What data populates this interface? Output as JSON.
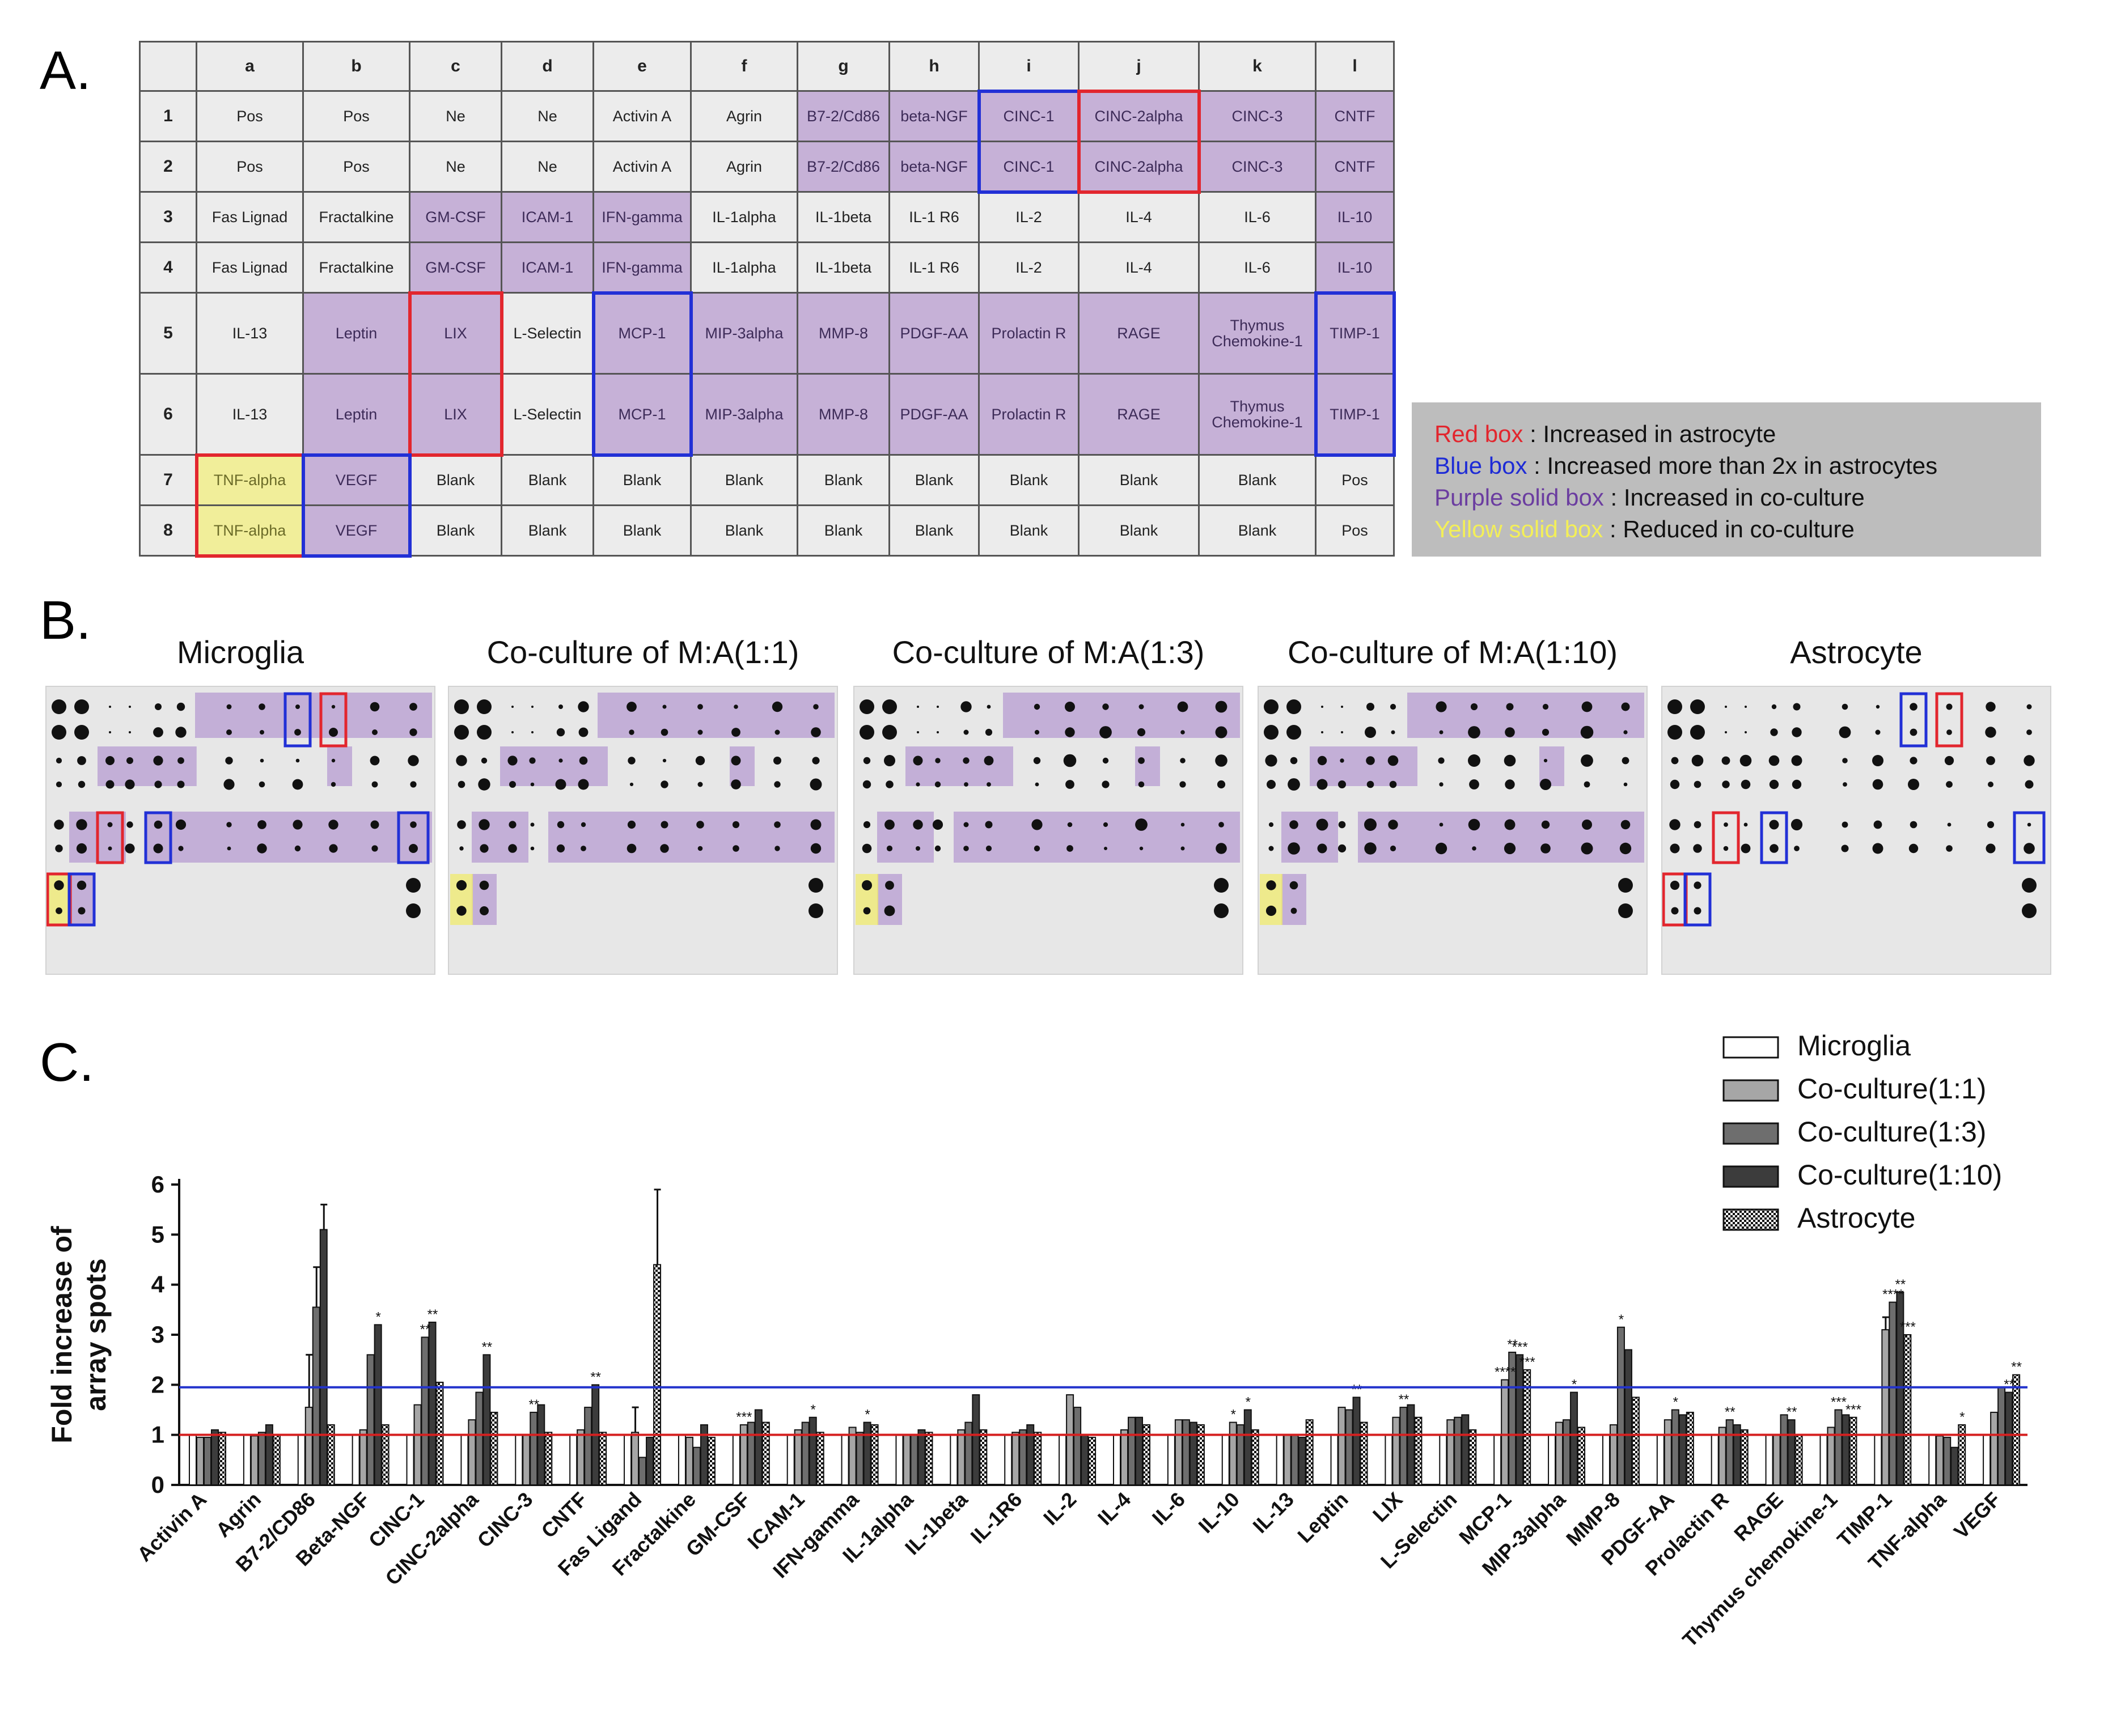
{
  "figure": {
    "panel_labels": {
      "a": "A.",
      "b": "B.",
      "c": "C."
    }
  },
  "panel_a": {
    "column_headers": [
      "",
      "a",
      "b",
      "c",
      "d",
      "e",
      "f",
      "g",
      "h",
      "i",
      "j",
      "k",
      "l"
    ],
    "rows": [
      {
        "id": "1",
        "cells": [
          "Pos",
          "Pos",
          "Ne",
          "Ne",
          "Activin A",
          "Agrin",
          "B7-2/Cd86",
          "beta-NGF",
          "CINC-1",
          "CINC-2alpha",
          "CINC-3",
          "CNTF"
        ]
      },
      {
        "id": "2",
        "cells": [
          "Pos",
          "Pos",
          "Ne",
          "Ne",
          "Activin A",
          "Agrin",
          "B7-2/Cd86",
          "beta-NGF",
          "CINC-1",
          "CINC-2alpha",
          "CINC-3",
          "CNTF"
        ]
      },
      {
        "id": "3",
        "cells": [
          "Fas Lignad",
          "Fractalkine",
          "GM-CSF",
          "ICAM-1",
          "IFN-gamma",
          "IL-1alpha",
          "IL-1beta",
          "IL-1 R6",
          "IL-2",
          "IL-4",
          "IL-6",
          "IL-10"
        ]
      },
      {
        "id": "4",
        "cells": [
          "Fas Lignad",
          "Fractalkine",
          "GM-CSF",
          "ICAM-1",
          "IFN-gamma",
          "IL-1alpha",
          "IL-1beta",
          "IL-1 R6",
          "IL-2",
          "IL-4",
          "IL-6",
          "IL-10"
        ]
      },
      {
        "id": "5",
        "cells": [
          "IL-13",
          "Leptin",
          "LIX",
          "L-Selectin",
          "MCP-1",
          "MIP-3alpha",
          "MMP-8",
          "PDGF-AA",
          "Prolactin R",
          "RAGE",
          "Thymus Chemokine-1",
          "TIMP-1"
        ]
      },
      {
        "id": "6",
        "cells": [
          "IL-13",
          "Leptin",
          "LIX",
          "L-Selectin",
          "MCP-1",
          "MIP-3alpha",
          "MMP-8",
          "PDGF-AA",
          "Prolactin R",
          "RAGE",
          "Thymus Chemokine-1",
          "TIMP-1"
        ]
      },
      {
        "id": "7",
        "cells": [
          "TNF-alpha",
          "VEGF",
          "Blank",
          "Blank",
          "Blank",
          "Blank",
          "Blank",
          "Blank",
          "Blank",
          "Blank",
          "Blank",
          "Pos"
        ]
      },
      {
        "id": "8",
        "cells": [
          "TNF-alpha",
          "VEGF",
          "Blank",
          "Blank",
          "Blank",
          "Blank",
          "Blank",
          "Blank",
          "Blank",
          "Blank",
          "Blank",
          "Pos"
        ]
      }
    ],
    "legend": {
      "red_key": "Red box",
      "red_text": " : Increased in astrocyte",
      "blue_key": "Blue box",
      "blue_text": " : Increased more than 2x in astrocytes",
      "purple_key": "Purple solid box",
      "purple_text": " : Increased in co-culture",
      "yellow_key": "Yellow solid box",
      "yellow_text": " : Reduced in co-culture"
    },
    "colors": {
      "red": "#e2262e",
      "blue": "#2230d6",
      "purple": "#c6b1d7",
      "yellow": "#f1ee9a"
    }
  },
  "panel_b": {
    "blots": [
      {
        "title": "Microglia"
      },
      {
        "title": "Co-culture of M:A(1:1)"
      },
      {
        "title": "Co-culture of M:A(1:3)"
      },
      {
        "title": "Co-culture of M:A(1:10)"
      },
      {
        "title": "Astrocyte"
      }
    ]
  },
  "chart_data": {
    "type": "bar",
    "title": "",
    "xlabel": "",
    "ylabel": "Fold increase of array spots",
    "ylim": [
      0,
      6
    ],
    "yticks": [
      "0",
      "1",
      "2",
      "3",
      "4",
      "5",
      "6"
    ],
    "reference_lines": [
      {
        "y": 1,
        "color": "#d62020"
      },
      {
        "y": 1.95,
        "color": "#2233cc"
      }
    ],
    "categories": [
      "Activin A",
      "Agrin",
      "B7-2/CD86",
      "Beta-NGF",
      "CINC-1",
      "CINC-2alpha",
      "CINC-3",
      "CNTF",
      "Fas Ligand",
      "Fractalkine",
      "GM-CSF",
      "ICAM-1",
      "IFN-gamma",
      "IL-1alpha",
      "IL-1beta",
      "IL-1R6",
      "IL-2",
      "IL-4",
      "IL-6",
      "IL-10",
      "IL-13",
      "Leptin",
      "LIX",
      "L-Selectin",
      "MCP-1",
      "MIP-3alpha",
      "MMP-8",
      "PDGF-AA",
      "Prolactin R",
      "RAGE",
      "Thymus chemokine-1",
      "TIMP-1",
      "TNF-alpha",
      "VEGF"
    ],
    "series": [
      {
        "name": "Microglia",
        "fill": "#ffffff",
        "values": [
          1,
          1,
          1,
          1,
          1,
          1,
          1,
          1,
          1,
          1,
          1,
          1,
          1,
          1,
          1,
          1,
          1,
          1,
          1,
          1,
          1,
          1,
          1,
          1,
          1,
          1,
          1,
          1,
          1,
          1,
          1,
          1,
          1,
          1
        ]
      },
      {
        "name": "Co-culture(1:1)",
        "fill": "#a6a6a6",
        "values": [
          0.95,
          0.98,
          1.55,
          1.1,
          1.6,
          1.3,
          1.0,
          1.1,
          1.05,
          0.95,
          1.2,
          1.1,
          1.15,
          1.0,
          1.1,
          1.05,
          1.8,
          1.1,
          1.3,
          1.25,
          1.0,
          1.55,
          1.35,
          1.3,
          2.1,
          1.25,
          1.2,
          1.3,
          1.15,
          1.0,
          1.15,
          3.1,
          0.98,
          1.45
        ]
      },
      {
        "name": "Co-culture(1:3)",
        "fill": "#6e6e6e",
        "values": [
          0.95,
          1.05,
          3.55,
          2.6,
          2.95,
          1.85,
          1.45,
          1.55,
          0.55,
          0.75,
          1.25,
          1.25,
          1.05,
          1.0,
          1.25,
          1.1,
          1.55,
          1.35,
          1.3,
          1.2,
          1.0,
          1.5,
          1.55,
          1.35,
          2.65,
          1.3,
          3.15,
          1.5,
          1.3,
          1.4,
          1.5,
          3.65,
          0.95,
          1.95
        ]
      },
      {
        "name": "Co-culture(1:10)",
        "fill": "#3c3c3c",
        "values": [
          1.1,
          1.2,
          5.1,
          3.2,
          3.25,
          2.6,
          1.6,
          2.0,
          0.95,
          1.2,
          1.5,
          1.35,
          1.25,
          1.1,
          1.8,
          1.2,
          1.0,
          1.35,
          1.25,
          1.5,
          0.95,
          1.75,
          1.6,
          1.4,
          2.6,
          1.85,
          2.7,
          1.4,
          1.2,
          1.3,
          1.4,
          3.85,
          0.75,
          1.85
        ]
      },
      {
        "name": "Astrocyte",
        "fill": "checker",
        "values": [
          1.05,
          1.0,
          1.2,
          1.2,
          2.05,
          1.45,
          1.05,
          1.05,
          4.4,
          0.95,
          1.25,
          1.05,
          1.2,
          1.05,
          1.1,
          1.05,
          0.95,
          1.2,
          1.2,
          1.1,
          1.3,
          1.25,
          1.35,
          1.1,
          2.3,
          1.15,
          1.75,
          1.45,
          1.1,
          1.0,
          1.35,
          3.0,
          1.2,
          2.2
        ]
      }
    ],
    "significance": [
      {
        "i": 3,
        "s": 3,
        "text": "*"
      },
      {
        "i": 4,
        "s": 2,
        "text": "**"
      },
      {
        "i": 4,
        "s": 3,
        "text": "**"
      },
      {
        "i": 5,
        "s": 3,
        "text": "**"
      },
      {
        "i": 6,
        "s": 2,
        "text": "**"
      },
      {
        "i": 7,
        "s": 3,
        "text": "**"
      },
      {
        "i": 10,
        "s": 1,
        "text": "***"
      },
      {
        "i": 11,
        "s": 3,
        "text": "*"
      },
      {
        "i": 12,
        "s": 3,
        "text": "*"
      },
      {
        "i": 19,
        "s": 1,
        "text": "*"
      },
      {
        "i": 19,
        "s": 3,
        "text": "*"
      },
      {
        "i": 21,
        "s": 3,
        "text": "**"
      },
      {
        "i": 22,
        "s": 2,
        "text": "**"
      },
      {
        "i": 24,
        "s": 1,
        "text": "****"
      },
      {
        "i": 24,
        "s": 2,
        "text": "**"
      },
      {
        "i": 24,
        "s": 3,
        "text": "***"
      },
      {
        "i": 24,
        "s": 4,
        "text": "***"
      },
      {
        "i": 25,
        "s": 3,
        "text": "*"
      },
      {
        "i": 26,
        "s": 2,
        "text": "*"
      },
      {
        "i": 27,
        "s": 2,
        "text": "*"
      },
      {
        "i": 28,
        "s": 2,
        "text": "**"
      },
      {
        "i": 29,
        "s": 3,
        "text": "**"
      },
      {
        "i": 30,
        "s": 2,
        "text": "***"
      },
      {
        "i": 30,
        "s": 4,
        "text": "***"
      },
      {
        "i": 31,
        "s": 2,
        "text": "****"
      },
      {
        "i": 31,
        "s": 3,
        "text": "**"
      },
      {
        "i": 31,
        "s": 4,
        "text": "***"
      },
      {
        "i": 32,
        "s": 4,
        "text": "*"
      },
      {
        "i": 33,
        "s": 3,
        "text": "**"
      },
      {
        "i": 33,
        "s": 4,
        "text": "**"
      }
    ],
    "errors": [
      {
        "i": 2,
        "s": 1,
        "e": 1.05
      },
      {
        "i": 2,
        "s": 2,
        "e": 0.8
      },
      {
        "i": 2,
        "s": 3,
        "e": 0.5
      },
      {
        "i": 8,
        "s": 1,
        "e": 0.5
      },
      {
        "i": 8,
        "s": 4,
        "e": 1.5
      },
      {
        "i": 31,
        "s": 1,
        "e": 0.25
      }
    ],
    "legend_labels": [
      "Microglia",
      "Co-culture(1:1)",
      "Co-culture(1:3)",
      "Co-culture(1:10)",
      "Astrocyte"
    ]
  }
}
